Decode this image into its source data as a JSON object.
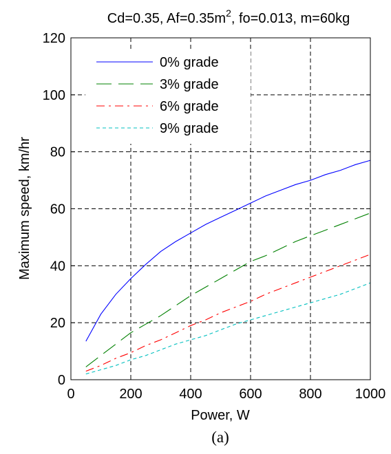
{
  "chart_data": {
    "type": "line",
    "title": {
      "prefix": "Cd=0.35, Af=0.35m",
      "superscript": "2",
      "suffix": ", fo=0.013, m=60kg"
    },
    "xlabel": "Power, W",
    "ylabel": "Maximum speed, km/hr",
    "caption": "(a)",
    "xlim": [
      0,
      1000
    ],
    "ylim": [
      0,
      120
    ],
    "x_ticks": [
      0,
      200,
      400,
      600,
      800,
      1000
    ],
    "y_ticks": [
      0,
      20,
      40,
      60,
      80,
      100,
      120
    ],
    "grid": true,
    "legend_position": "top-left",
    "series": [
      {
        "name": "0% grade",
        "color": "#0000ff",
        "dash": "solid",
        "x": [
          50,
          100,
          150,
          200,
          250,
          300,
          350,
          400,
          450,
          500,
          550,
          600,
          650,
          700,
          750,
          800,
          850,
          900,
          950,
          1000
        ],
        "y": [
          13.5,
          23,
          30,
          35.5,
          40.5,
          45,
          48.5,
          51.5,
          54.5,
          57,
          59.5,
          62,
          64.5,
          66.5,
          68.5,
          70,
          72,
          73.5,
          75.5,
          77
        ]
      },
      {
        "name": "3% grade",
        "color": "#008000",
        "dash": "long",
        "x": [
          50,
          100,
          150,
          200,
          250,
          300,
          350,
          400,
          450,
          500,
          550,
          600,
          650,
          700,
          750,
          800,
          850,
          900,
          950,
          1000
        ],
        "y": [
          4.5,
          8.5,
          12.5,
          16.5,
          19.5,
          22.5,
          26,
          29.5,
          32.5,
          35.5,
          38.5,
          41.5,
          43.5,
          46,
          48.5,
          50.5,
          52.5,
          54.5,
          56.5,
          58.5
        ]
      },
      {
        "name": "6% grade",
        "color": "#ff0000",
        "dash": "dashdot",
        "x": [
          50,
          100,
          150,
          200,
          250,
          300,
          350,
          400,
          450,
          500,
          550,
          600,
          650,
          700,
          750,
          800,
          850,
          900,
          950,
          1000
        ],
        "y": [
          3,
          5,
          7.5,
          9.5,
          12,
          14,
          16.5,
          19,
          21,
          23.5,
          25.5,
          27.5,
          30,
          32,
          34,
          36,
          38,
          40,
          42,
          44
        ]
      },
      {
        "name": "9% grade",
        "color": "#00bfbf",
        "dash": "dotted",
        "x": [
          50,
          100,
          150,
          200,
          250,
          300,
          350,
          400,
          450,
          500,
          550,
          600,
          650,
          700,
          750,
          800,
          850,
          900,
          950,
          1000
        ],
        "y": [
          2,
          3.5,
          5,
          7,
          8.5,
          10.5,
          12.5,
          14,
          15.5,
          17.5,
          19.5,
          21,
          22.5,
          24,
          25.5,
          27,
          28.5,
          30,
          32,
          34
        ]
      }
    ]
  }
}
